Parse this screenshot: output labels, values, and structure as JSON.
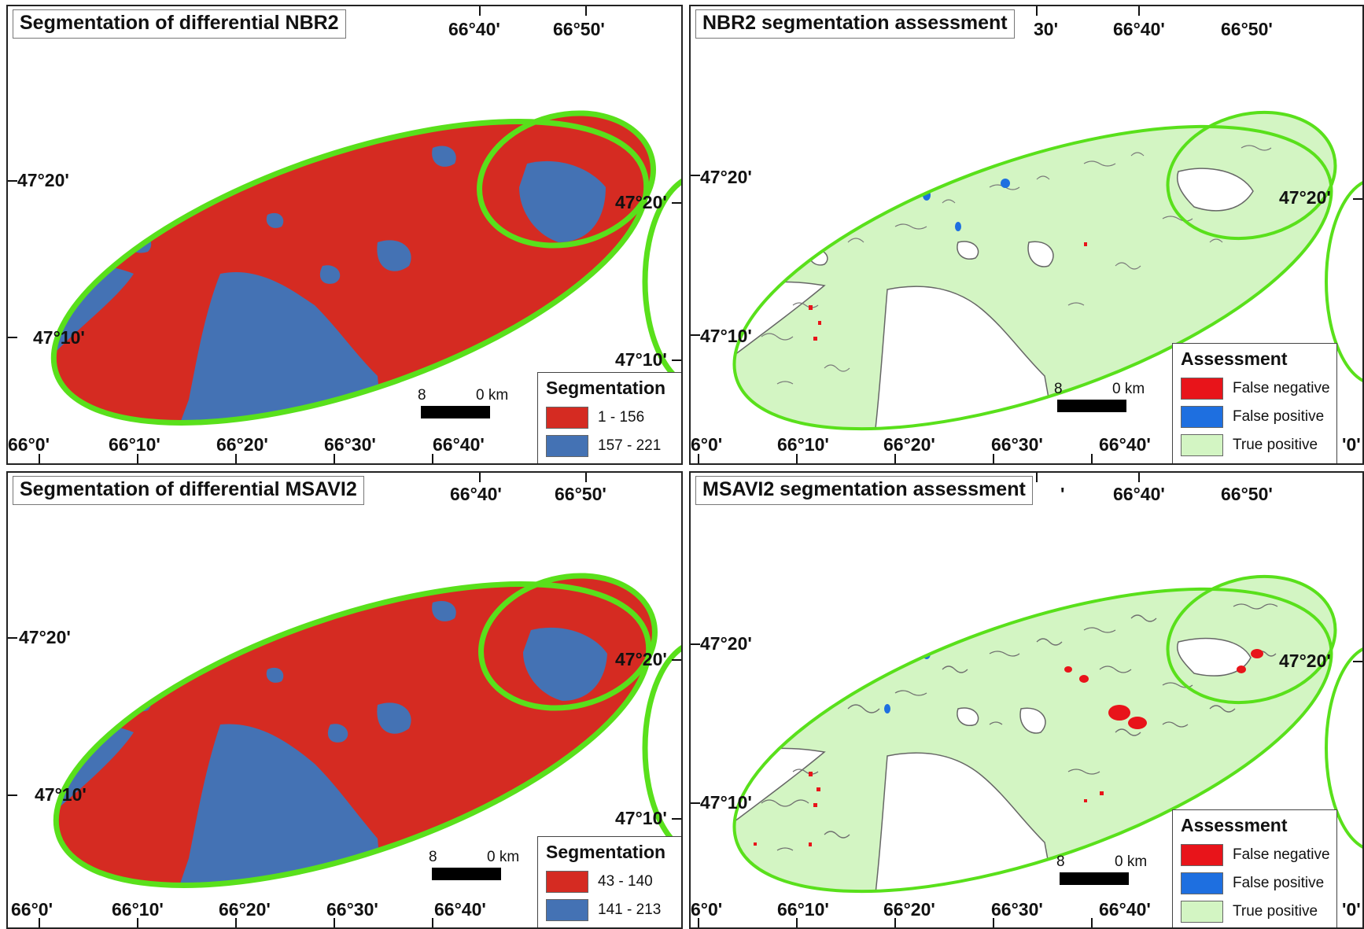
{
  "colors": {
    "burned_red": "#d52b22",
    "unburned_blue": "#4472b4",
    "false_negative": "#e8141a",
    "false_positive": "#1e6fe0",
    "true_positive": "#d3f5c3",
    "boundary_green": "#59e01b"
  },
  "panels": [
    {
      "title": "Segmentation of differential NBR2",
      "type": "segmentation",
      "top_ticks": [
        "66°40'",
        "66°50'"
      ],
      "bottom_ticks": [
        "66°0'",
        "66°10'",
        "66°20'",
        "66°30'",
        "66°40'"
      ],
      "left_ticks": [
        "47°20'",
        "47°10'"
      ],
      "right_ticks": [
        "47°20'",
        "47°10'"
      ],
      "scale": {
        "left_label": "8",
        "right_label": "0 km"
      },
      "legend": {
        "title": "Segmentation",
        "items": [
          {
            "label": "1 - 156",
            "color": "#d52b22"
          },
          {
            "label": "157 - 221",
            "color": "#4472b4"
          }
        ]
      }
    },
    {
      "title": "NBR2 segmentation assessment",
      "type": "assessment",
      "top_ticks": [
        "30'",
        "66°40'",
        "66°50'"
      ],
      "bottom_ticks": [
        "6°0'",
        "66°10'",
        "66°20'",
        "66°30'",
        "66°40'",
        "'0'"
      ],
      "left_ticks": [
        "47°20'",
        "47°10'"
      ],
      "right_ticks": [
        "47°20'"
      ],
      "scale": {
        "left_label": "8",
        "right_label": "0 km"
      },
      "legend": {
        "title": "Assessment",
        "items": [
          {
            "label": "False negative",
            "color": "#e8141a"
          },
          {
            "label": "False positive",
            "color": "#1e6fe0"
          },
          {
            "label": "True positive",
            "color": "#d3f5c3"
          }
        ]
      }
    },
    {
      "title": "Segmentation of differential MSAVI2",
      "type": "segmentation",
      "top_ticks": [
        "66°40'",
        "66°50'"
      ],
      "bottom_ticks": [
        "66°0'",
        "66°10'",
        "66°20'",
        "66°30'",
        "66°40'"
      ],
      "left_ticks": [
        "47°20'",
        "47°10'"
      ],
      "right_ticks": [
        "47°20'",
        "47°10'"
      ],
      "scale": {
        "left_label": "8",
        "right_label": "0 km"
      },
      "legend": {
        "title": "Segmentation",
        "items": [
          {
            "label": "43 - 140",
            "color": "#d52b22"
          },
          {
            "label": "141 - 213",
            "color": "#4472b4"
          }
        ]
      }
    },
    {
      "title": "MSAVI2 segmentation assessment",
      "type": "assessment",
      "top_ticks": [
        "'",
        "66°40'",
        "66°50'"
      ],
      "bottom_ticks": [
        "6°0'",
        "66°10'",
        "66°20'",
        "66°30'",
        "66°40'",
        "'0'"
      ],
      "left_ticks": [
        "47°20'",
        "47°10'"
      ],
      "right_ticks": [
        "47°20'"
      ],
      "scale": {
        "left_label": "8",
        "right_label": "0 km"
      },
      "legend": {
        "title": "Assessment",
        "items": [
          {
            "label": "False negative",
            "color": "#e8141a"
          },
          {
            "label": "False positive",
            "color": "#1e6fe0"
          },
          {
            "label": "True positive",
            "color": "#d3f5c3"
          }
        ]
      }
    }
  ]
}
